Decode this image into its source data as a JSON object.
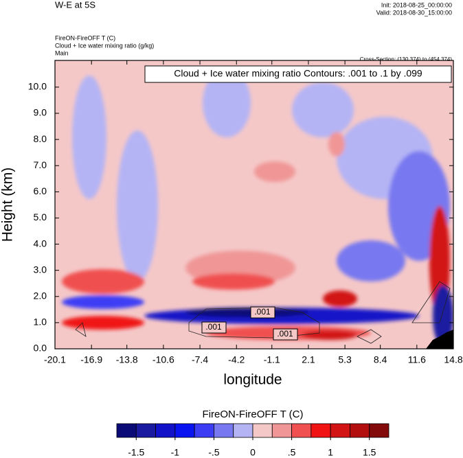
{
  "chart_data": {
    "type": "contour",
    "title": "W-E at 5S",
    "init": "Init: 2018-08-25_00:00:00",
    "valid": "Valid: 2018-08-30_15:00:00",
    "field_title": "FireON-FireOFF T   (C)",
    "contour_field_title": "Cloud + Ice water mixing ratio   (g/kg)",
    "domain": "Main",
    "cross_section": "Cross-Section: (130,374) to (454,374)",
    "contour_info": "Cloud + Ice water mixing ratio Contours: .001 to .1 by .099",
    "contour_labels": [
      ".001",
      ".001",
      ".001"
    ],
    "x_label": "longitude",
    "y_label": "Height (km)",
    "xlim": [
      -20.1,
      14.8
    ],
    "xticks": [
      -20.1,
      -16.9,
      -13.8,
      -10.6,
      -7.4,
      -4.2,
      -1.1,
      2.1,
      5.3,
      8.4,
      11.6,
      14.8
    ],
    "ylim": [
      0,
      11.02
    ],
    "yticks": [
      {
        "value": 0,
        "label": "0.0"
      },
      {
        "value": 1,
        "label": "1.0"
      },
      {
        "value": 2,
        "label": "2.0"
      },
      {
        "value": 3,
        "label": "3.0"
      },
      {
        "value": 4,
        "label": "4.0"
      },
      {
        "value": 5,
        "label": "5.0"
      },
      {
        "value": 6,
        "label": "6.0"
      },
      {
        "value": 7,
        "label": "7.0"
      },
      {
        "value": 8,
        "label": "8.0"
      },
      {
        "value": 9,
        "label": "9.0"
      },
      {
        "value": 10,
        "label": "10.0"
      }
    ],
    "colorbar": {
      "title": "FireON-FireOFF T  (C)",
      "lim": [
        -1.75,
        1.75
      ],
      "colors": [
        "#0b0b78",
        "#1a1aa0",
        "#1212c8",
        "#0a14f0",
        "#3c3cf5",
        "#7878f0",
        "#b4b4f5",
        "#f5c8c8",
        "#f09696",
        "#f05050",
        "#f01414",
        "#d21414",
        "#b40f0f",
        "#820a0a"
      ],
      "ticks": [
        {
          "value": -1.5,
          "label": "-1.5"
        },
        {
          "value": -1,
          "label": "-1"
        },
        {
          "value": -0.5,
          "label": "-.5"
        },
        {
          "value": 0,
          "label": "0"
        },
        {
          "value": 0.5,
          "label": ".5"
        },
        {
          "value": 1,
          "label": "1"
        },
        {
          "value": 1.5,
          "label": "1.5"
        }
      ]
    }
  }
}
